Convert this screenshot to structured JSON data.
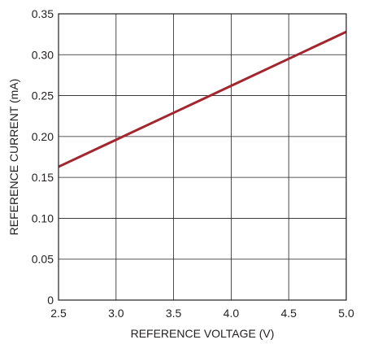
{
  "chart_data": {
    "type": "line",
    "title": "",
    "xlabel": "REFERENCE VOLTAGE (V)",
    "ylabel": "REFERENCE CURRENT (mA)",
    "xlim": [
      2.5,
      5.0
    ],
    "ylim": [
      0,
      0.35
    ],
    "x_ticks": [
      "2.5",
      "3.0",
      "3.5",
      "4.0",
      "4.5",
      "5.0"
    ],
    "y_ticks": [
      "0",
      "0.05",
      "0.10",
      "0.15",
      "0.20",
      "0.25",
      "0.30",
      "0.35"
    ],
    "grid": true,
    "series": [
      {
        "x": [
          2.5,
          3.0,
          3.5,
          4.0,
          4.5,
          5.0
        ],
        "y": [
          0.163,
          0.196,
          0.229,
          0.262,
          0.295,
          0.328
        ],
        "color": "#a3262e"
      }
    ]
  }
}
